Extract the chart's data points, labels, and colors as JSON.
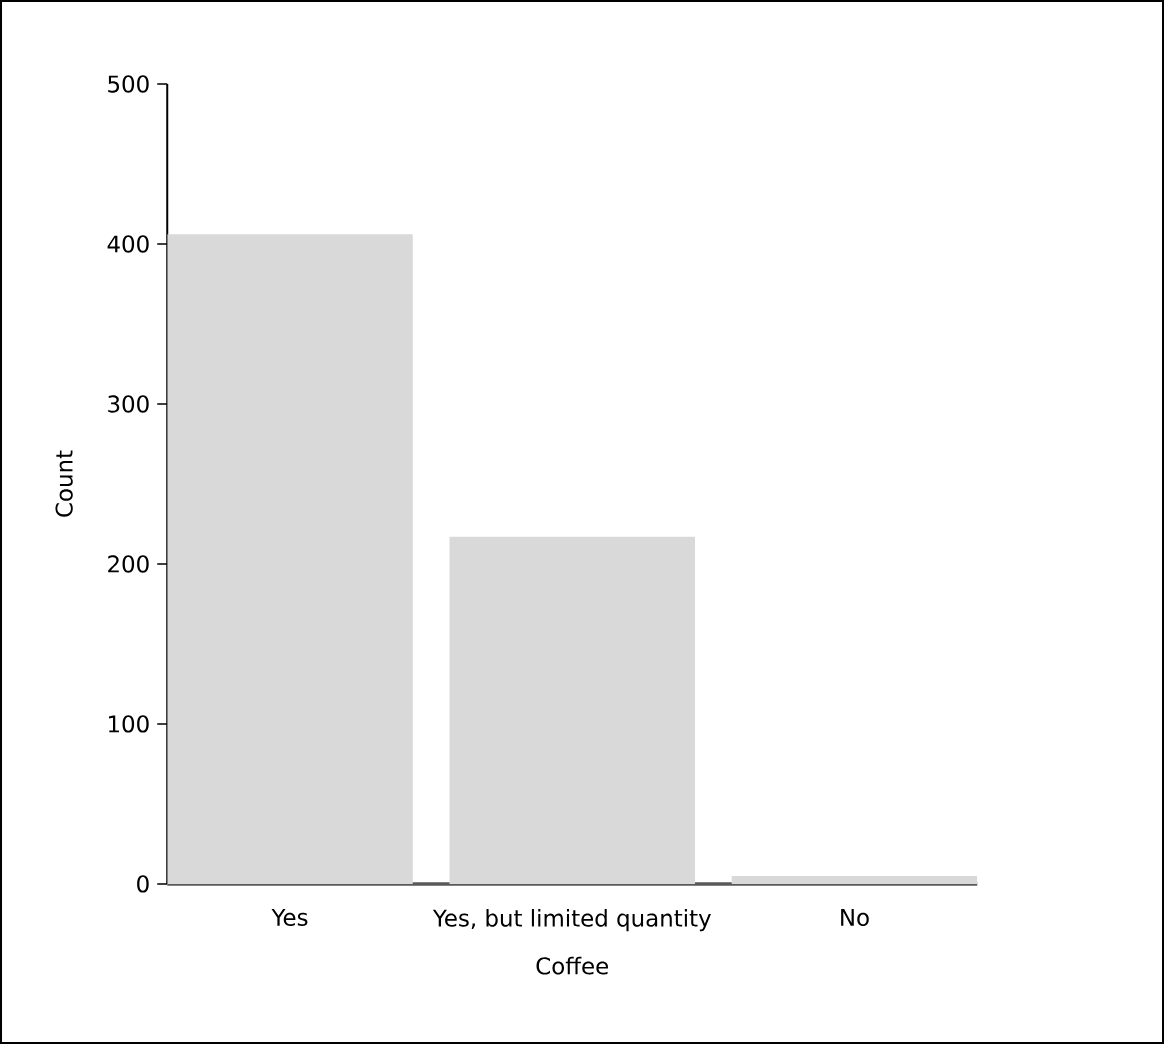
{
  "chart_data": {
    "type": "bar",
    "xlabel": "Coffee",
    "ylabel": "Count",
    "categories": [
      "Yes",
      "Yes, but limited quantity",
      "No"
    ],
    "values": [
      406,
      217,
      5
    ],
    "color": "#d9d9d9",
    "ylim": [
      0,
      500
    ],
    "yticks": [
      0,
      100,
      200,
      300,
      400,
      500
    ],
    "grid": false
  }
}
